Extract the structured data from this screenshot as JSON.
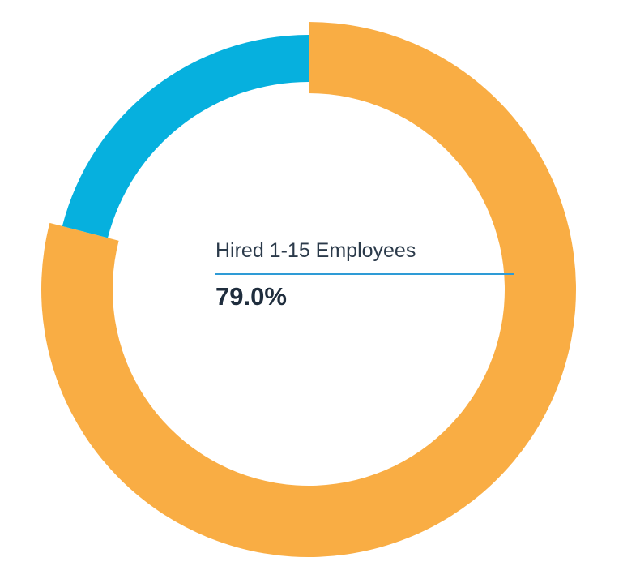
{
  "chart_data": {
    "type": "pie",
    "donut": true,
    "slices": [
      {
        "name": "",
        "value": 79.0,
        "color": "#F9AD44"
      },
      {
        "name": "",
        "value": 21.0,
        "color": "#06B0DE"
      }
    ],
    "highlight": {
      "label": "Hired 1-15 Employees",
      "value": "79.0%",
      "rule_color": "#2E9BD6"
    },
    "legend": "none"
  }
}
